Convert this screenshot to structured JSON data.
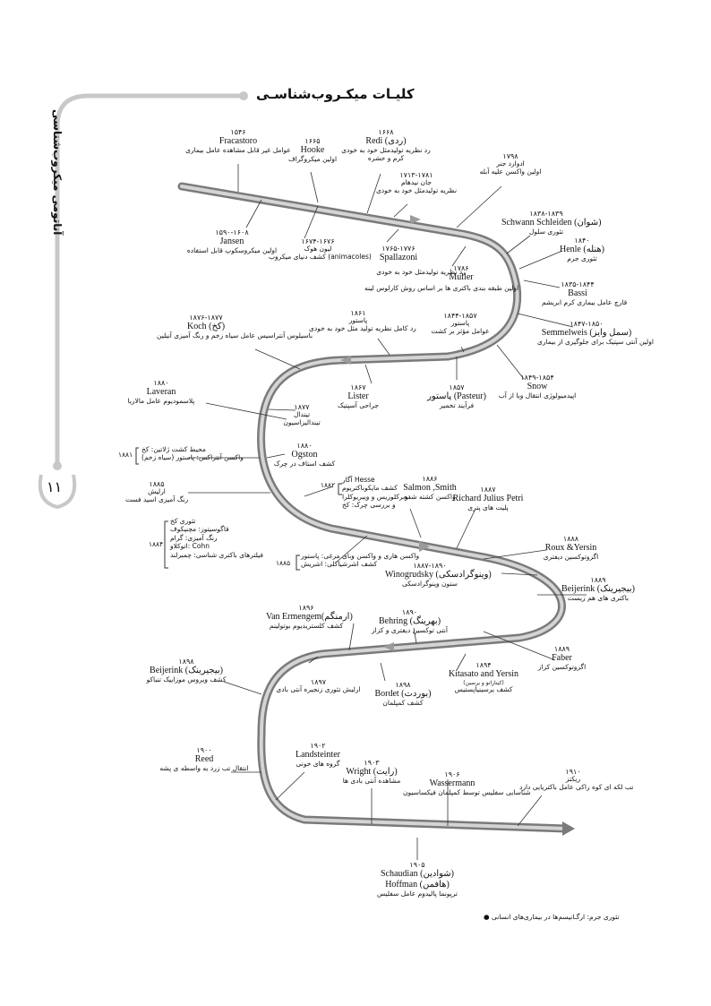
{
  "page": {
    "title": "کلیـات میکـروب‌شناسـی",
    "side_label": "آناتومی میکروب‌شناسی",
    "page_number": "۱۱",
    "footnote": "تئوری جرم: ارگـانیسم‌ها در بیماری‌های انسانی"
  },
  "events": {
    "fracastoro": {
      "year": "۱۵۴۶",
      "name": "Fracastoro",
      "desc": "عوامل غیر قابل مشاهده عامل بیماری"
    },
    "hooke": {
      "year": "۱۶۶۵",
      "name": "Hooke",
      "desc": "اولین میکروگراف"
    },
    "redi": {
      "year": "۱۶۶۸",
      "name": "Redi (ردی)",
      "desc1": "رد نظریه تولیدمثل خود به خودی",
      "desc2": "کرم و حشره"
    },
    "jenner": {
      "year": "۱۷۹۸",
      "name": "ادوارد جنر",
      "desc": "اولین واکسن علیه آبله"
    },
    "needham": {
      "year": "۱۷۱۳-۱۷۸۱",
      "name": "جان نیدهام",
      "desc": "نظریه تولیدمثل خود به خودی"
    },
    "jansen": {
      "year": "۱۵۹۰-۱۶۰۸",
      "name": "Jansen",
      "desc": "اولین میکروسکوپ قابل استفاده"
    },
    "leeuwenhoek": {
      "year": "۱۶۷۴-۱۶۷۶",
      "name": "لیون هوک",
      "desc": "کشف دنیای میکروب (animacoles)"
    },
    "spallanzani": {
      "year": "۱۷۶۵-۱۷۷۶",
      "name": "Spallazoni",
      "desc": "رد نظریه تولیدمثل خود به خودی"
    },
    "muller": {
      "year": "۱۷۸۶",
      "name": "Muller",
      "desc": "اولین طبقه بندی باکتری ها بر اساس روش کارلوس لینه"
    },
    "schwann": {
      "year": "۱۸۳۸-۱۸۳۹",
      "name": "Schwann Schleiden (شوان)",
      "desc": "تئوری سلول"
    },
    "henle": {
      "year": "۱۸۴۰",
      "name": "Henle (هنله)",
      "desc": "تئوری جرم"
    },
    "bassi": {
      "year": "۱۸۳۵-۱۸۴۴",
      "name": "Bassi",
      "desc": "قارچ عامل بیماری کرم ابریشم"
    },
    "semmelweis": {
      "year": "۱۸۴۷-۱۸۵۰",
      "name": "Semmelweis (سمل وایز)",
      "desc": "اولین آنتی سپتیک برای جلوگیری از بیماری"
    },
    "snow": {
      "year": "۱۸۴۹-۱۸۵۴",
      "name": "Snow",
      "desc": "اپیدمیولوژی انتقال وبا از آب"
    },
    "koch1": {
      "year": "۱۸۷۶-۱۸۷۷",
      "name": "Koch (کخ)",
      "desc": "باسیلوس آنتراسیس عامل سیاه زخم و رنگ آمیزی آنیلین"
    },
    "pasteur1": {
      "year": "۱۸۶۱",
      "name": "پاستور",
      "desc": "رد کامل نظریه تولید مثل خود به خودی"
    },
    "pasteur2": {
      "year": "۱۸۴۴-۱۸۵۷",
      "name": "پاستور",
      "desc": "عوامل مؤثر بر کشت"
    },
    "lister": {
      "year": "۱۸۶۷",
      "name": "Lister",
      "desc": "جراحی آسپتیک"
    },
    "pasteur3": {
      "year": "۱۸۵۷",
      "name": "پاستور (Pasteur)",
      "desc": "فرآیند تخمیر"
    },
    "laveran": {
      "year": "۱۸۸۰",
      "name": "Laveran",
      "desc": "پلاسمودیوم عامل مالاریا"
    },
    "tyndall": {
      "year": "۱۸۷۷",
      "name": "تیندال",
      "desc": "تیندالیزاسیون"
    },
    "koch2": {
      "year": "۱۸۸۱",
      "line1": "محیط کشت ژلاتین: کخ",
      "line2": "(سیاه زخم) واکسن آنتراکس: پاستور"
    },
    "ogston": {
      "year": "۱۸۸۰",
      "name": "Ogston",
      "desc": "کشف استاف در چرک"
    },
    "ehrlich": {
      "year": "۱۸۸۵",
      "name": "ارلیش",
      "desc": "رنگ آمیزی اسید فست"
    },
    "hesse": {
      "year": "۱۸۸۲",
      "line1": "آگار Hesse",
      "line2": "کشف مایکوباکتریوم",
      "line3": "توبرکلوزیس و ویبریوکلرا",
      "line4": "و بررسی چرک: کخ"
    },
    "salmon": {
      "year": "۱۸۸۶",
      "name": "Salmon ,Smith",
      "desc": "واکسن کشته شده"
    },
    "petri": {
      "year": "۱۸۸۷",
      "name": "Richard Julius Petri",
      "desc": "پلیت های پتری"
    },
    "koch3": {
      "year": "۱۸۸۴",
      "line1": "تئوری کخ",
      "line2": "فاگوسیتوز: مچنیکوف",
      "line3": "رنگ آمیزی: گرام",
      "line4": "اتوکلاو: Cohn",
      "line5": "فیلترهای باکتری شناسی: چمبرلند"
    },
    "pasteur4": {
      "year": "۱۸۸۵",
      "line1": "واکسن هاری و واکسن وبای مرغی: پاستور",
      "line2": "کشف اشرشیاکلی: اشریش"
    },
    "winogradsky": {
      "year": "۱۸۸۷-۱۸۹۰",
      "name": "Winogrudsky (وینوگرادسکی)",
      "desc": "ستون وینوگرادسکی"
    },
    "roux": {
      "year": "۱۸۸۸",
      "name": "Roux &Yersin",
      "desc": "اگزوتوکسین دیفتری"
    },
    "beijerinck1": {
      "year": "۱۸۸۹",
      "name": "Beijerink (بیجیرینک)",
      "desc": "باکتری های هم زیست"
    },
    "vanermengem": {
      "year": "۱۸۹۶",
      "name": "Van Ermengem(ارمنگم)",
      "desc": "کشف کلستریدیوم بوتولینم"
    },
    "behring": {
      "year": "۱۸۹۰",
      "name": "Behring (بهرینگ)",
      "desc": "آنتی توکسین دیفتری و کزاز"
    },
    "faber": {
      "year": "۱۸۸۹",
      "name": "Faber",
      "desc": "اگزوتوکسین کزاز"
    },
    "beijerinck2": {
      "year": "۱۸۹۸",
      "name": "Beijerink (بیجیرینک)",
      "desc": "کشف ویروس موزاییک تنباکو"
    },
    "metchnikoff": {
      "year": "۱۸۹۷",
      "desc": "ارلیش تئوری زنجیره آنتی بادی"
    },
    "bordet": {
      "year": "۱۸۹۸",
      "name": "Bordet (بوردت)",
      "desc": "کشف کمپلمان"
    },
    "kitasato": {
      "year": "۱۸۹۴",
      "name": "Kitasato and Yersin",
      "sub": "(کیتازاتو و یرسین)",
      "desc": "کشف یرسینیاپستیس"
    },
    "reed": {
      "year": "۱۹۰۰",
      "name": "Reed",
      "desc": "انتقال تب زرد به واسطه ی پشه"
    },
    "landsteiner": {
      "year": "۱۹۰۲",
      "name": "Landsteinter",
      "desc": "گروه های خونی"
    },
    "wright": {
      "year": "۱۹۰۳",
      "name": "Wright (رایت)",
      "desc": "مشاهده آنتی بادی ها"
    },
    "wassermann": {
      "year": "۱۹۰۶",
      "name": "Wassermann",
      "desc": "شناسایی سفلیس توسط کمپلمان فیکساسیون"
    },
    "ricketts": {
      "year": "۱۹۱۰",
      "name": "ریکتز",
      "desc": "تب لکه ای کوه راکی عامل باکتریایی دارد"
    },
    "schaudinn": {
      "year": "۱۹۰۵",
      "name": "Schaudian (شوادین)",
      "name2": "Hoffman (هافمن)",
      "desc": "ترپونما پالیدوم عامل سفلیس"
    }
  }
}
